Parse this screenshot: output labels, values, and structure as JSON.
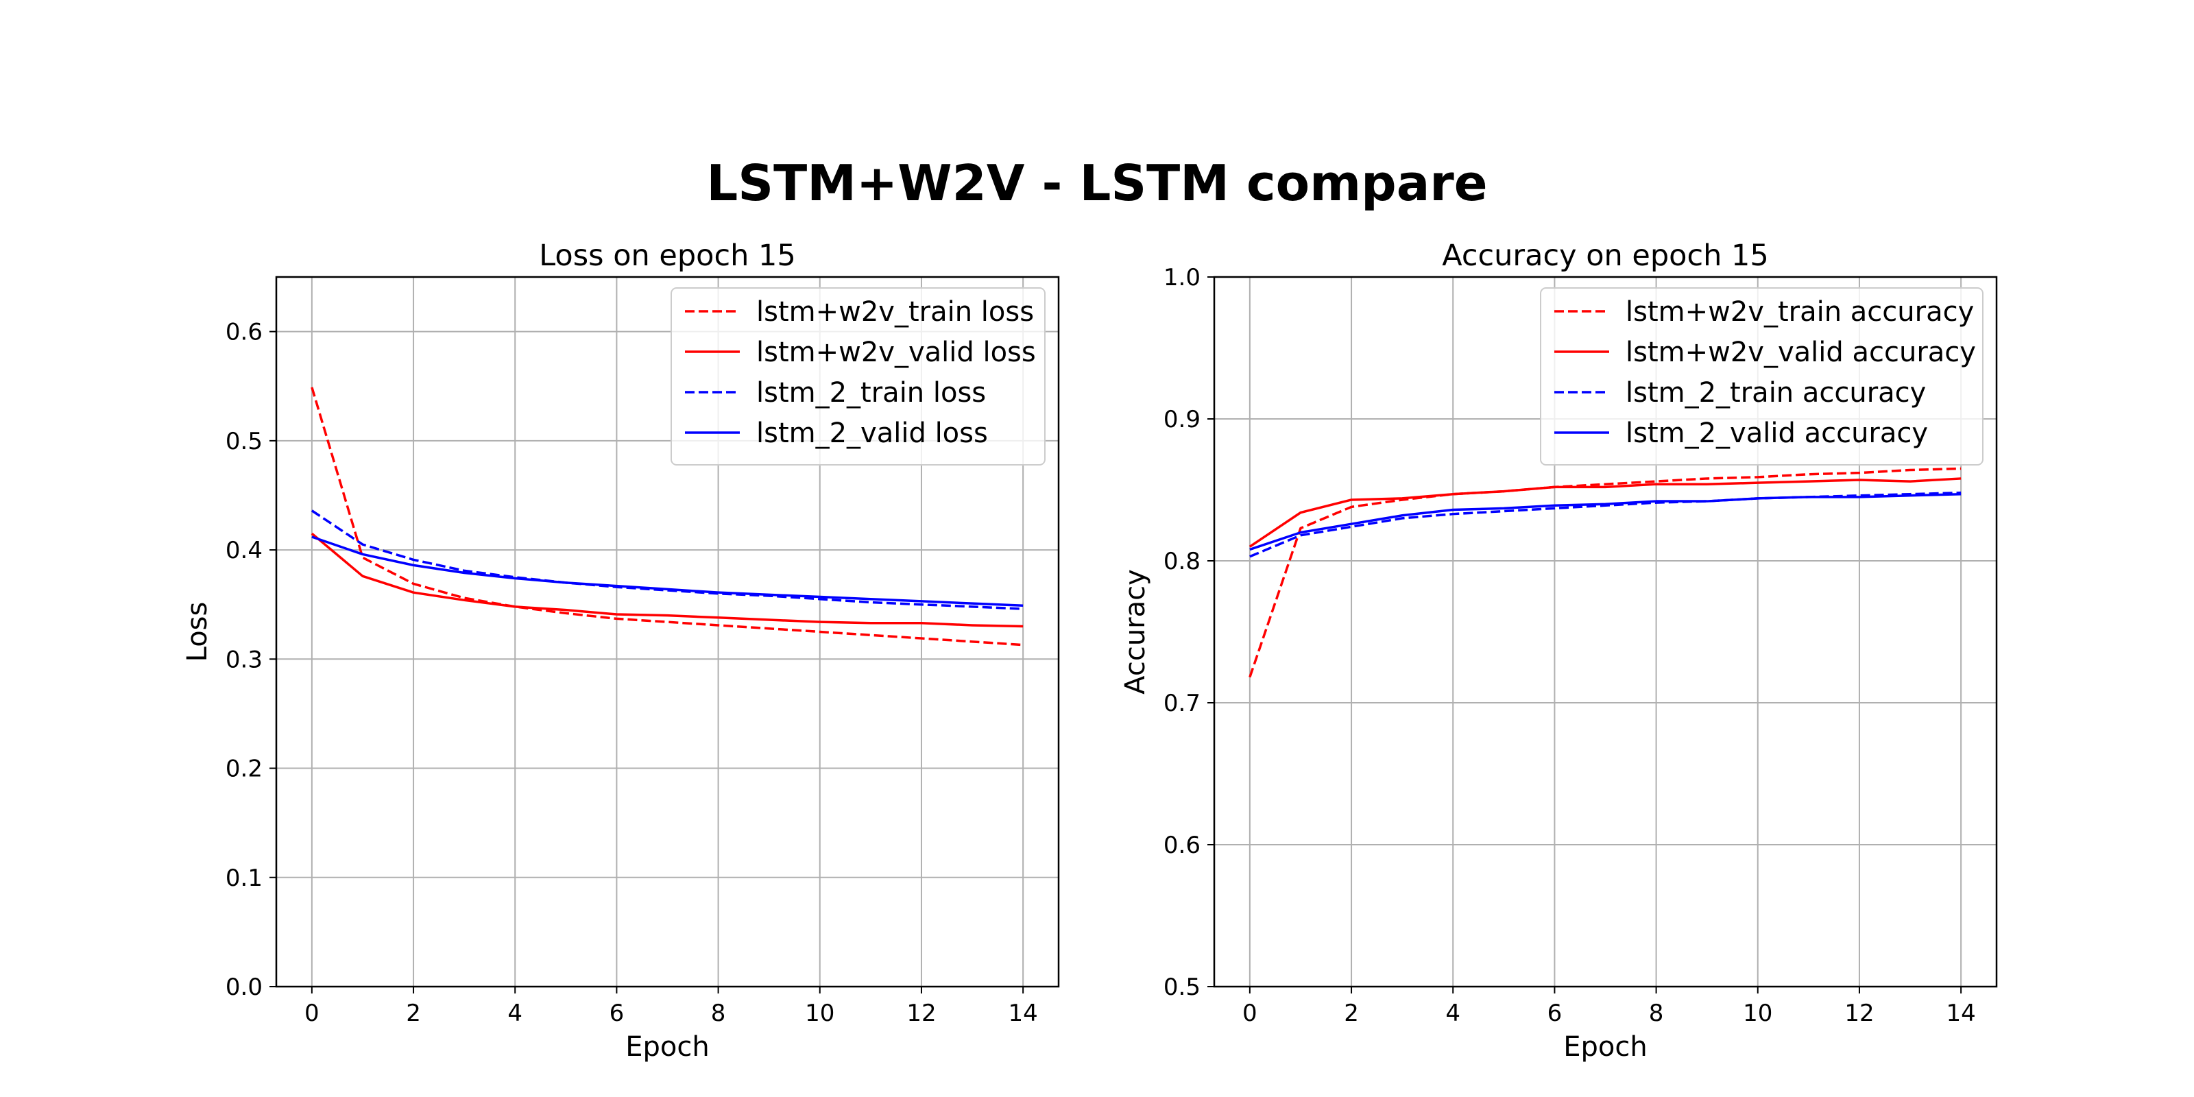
{
  "figure": {
    "title": "LSTM+W2V - LSTM compare"
  },
  "chart_data": [
    {
      "type": "line",
      "title": "Loss on epoch 15",
      "xlabel": "Epoch",
      "ylabel": "Loss",
      "xlim": [
        -0.7,
        14.7
      ],
      "ylim": [
        0.0,
        0.65
      ],
      "xticks": [
        0,
        2,
        4,
        6,
        8,
        10,
        12,
        14
      ],
      "xtick_labels": [
        "0",
        "2",
        "4",
        "6",
        "8",
        "10",
        "12",
        "14"
      ],
      "yticks": [
        0.0,
        0.1,
        0.2,
        0.3,
        0.4,
        0.5,
        0.6
      ],
      "ytick_labels": [
        "0.0",
        "0.1",
        "0.2",
        "0.3",
        "0.4",
        "0.5",
        "0.6"
      ],
      "grid": true,
      "legend_position": "top-right",
      "x": [
        0,
        1,
        2,
        3,
        4,
        5,
        6,
        7,
        8,
        9,
        10,
        11,
        12,
        13,
        14
      ],
      "series": [
        {
          "name": "lstm+w2v_train loss",
          "color": "#ff0000",
          "dashed": true,
          "values": [
            0.549,
            0.393,
            0.369,
            0.356,
            0.348,
            0.342,
            0.337,
            0.334,
            0.331,
            0.328,
            0.325,
            0.322,
            0.319,
            0.316,
            0.313
          ]
        },
        {
          "name": "lstm+w2v_valid loss",
          "color": "#ff0000",
          "dashed": false,
          "values": [
            0.415,
            0.376,
            0.361,
            0.354,
            0.348,
            0.345,
            0.341,
            0.34,
            0.338,
            0.336,
            0.334,
            0.333,
            0.333,
            0.331,
            0.33
          ]
        },
        {
          "name": "lstm_2_train loss",
          "color": "#0000ff",
          "dashed": true,
          "values": [
            0.436,
            0.405,
            0.391,
            0.381,
            0.375,
            0.37,
            0.366,
            0.363,
            0.36,
            0.358,
            0.355,
            0.352,
            0.35,
            0.348,
            0.346
          ]
        },
        {
          "name": "lstm_2_valid loss",
          "color": "#0000ff",
          "dashed": false,
          "values": [
            0.412,
            0.396,
            0.386,
            0.379,
            0.374,
            0.37,
            0.367,
            0.364,
            0.361,
            0.359,
            0.357,
            0.355,
            0.353,
            0.351,
            0.349
          ]
        }
      ]
    },
    {
      "type": "line",
      "title": "Accuracy on epoch 15",
      "xlabel": "Epoch",
      "ylabel": "Accuracy",
      "xlim": [
        -0.7,
        14.7
      ],
      "ylim": [
        0.5,
        1.0
      ],
      "xticks": [
        0,
        2,
        4,
        6,
        8,
        10,
        12,
        14
      ],
      "xtick_labels": [
        "0",
        "2",
        "4",
        "6",
        "8",
        "10",
        "12",
        "14"
      ],
      "yticks": [
        0.5,
        0.6,
        0.7,
        0.8,
        0.9,
        1.0
      ],
      "ytick_labels": [
        "0.5",
        "0.6",
        "0.7",
        "0.8",
        "0.9",
        "1.0"
      ],
      "grid": true,
      "legend_position": "top-right",
      "x": [
        0,
        1,
        2,
        3,
        4,
        5,
        6,
        7,
        8,
        9,
        10,
        11,
        12,
        13,
        14
      ],
      "series": [
        {
          "name": "lstm+w2v_train accuracy",
          "color": "#ff0000",
          "dashed": true,
          "values": [
            0.718,
            0.823,
            0.838,
            0.843,
            0.847,
            0.849,
            0.852,
            0.854,
            0.856,
            0.858,
            0.859,
            0.861,
            0.862,
            0.864,
            0.865
          ]
        },
        {
          "name": "lstm+w2v_valid accuracy",
          "color": "#ff0000",
          "dashed": false,
          "values": [
            0.81,
            0.834,
            0.843,
            0.844,
            0.847,
            0.849,
            0.852,
            0.852,
            0.854,
            0.854,
            0.855,
            0.856,
            0.857,
            0.856,
            0.858
          ]
        },
        {
          "name": "lstm_2_train accuracy",
          "color": "#0000ff",
          "dashed": true,
          "values": [
            0.803,
            0.818,
            0.824,
            0.83,
            0.833,
            0.835,
            0.837,
            0.839,
            0.841,
            0.842,
            0.844,
            0.845,
            0.846,
            0.847,
            0.848
          ]
        },
        {
          "name": "lstm_2_valid accuracy",
          "color": "#0000ff",
          "dashed": false,
          "values": [
            0.808,
            0.82,
            0.826,
            0.832,
            0.836,
            0.837,
            0.839,
            0.84,
            0.842,
            0.842,
            0.844,
            0.845,
            0.845,
            0.846,
            0.847
          ]
        }
      ]
    }
  ]
}
